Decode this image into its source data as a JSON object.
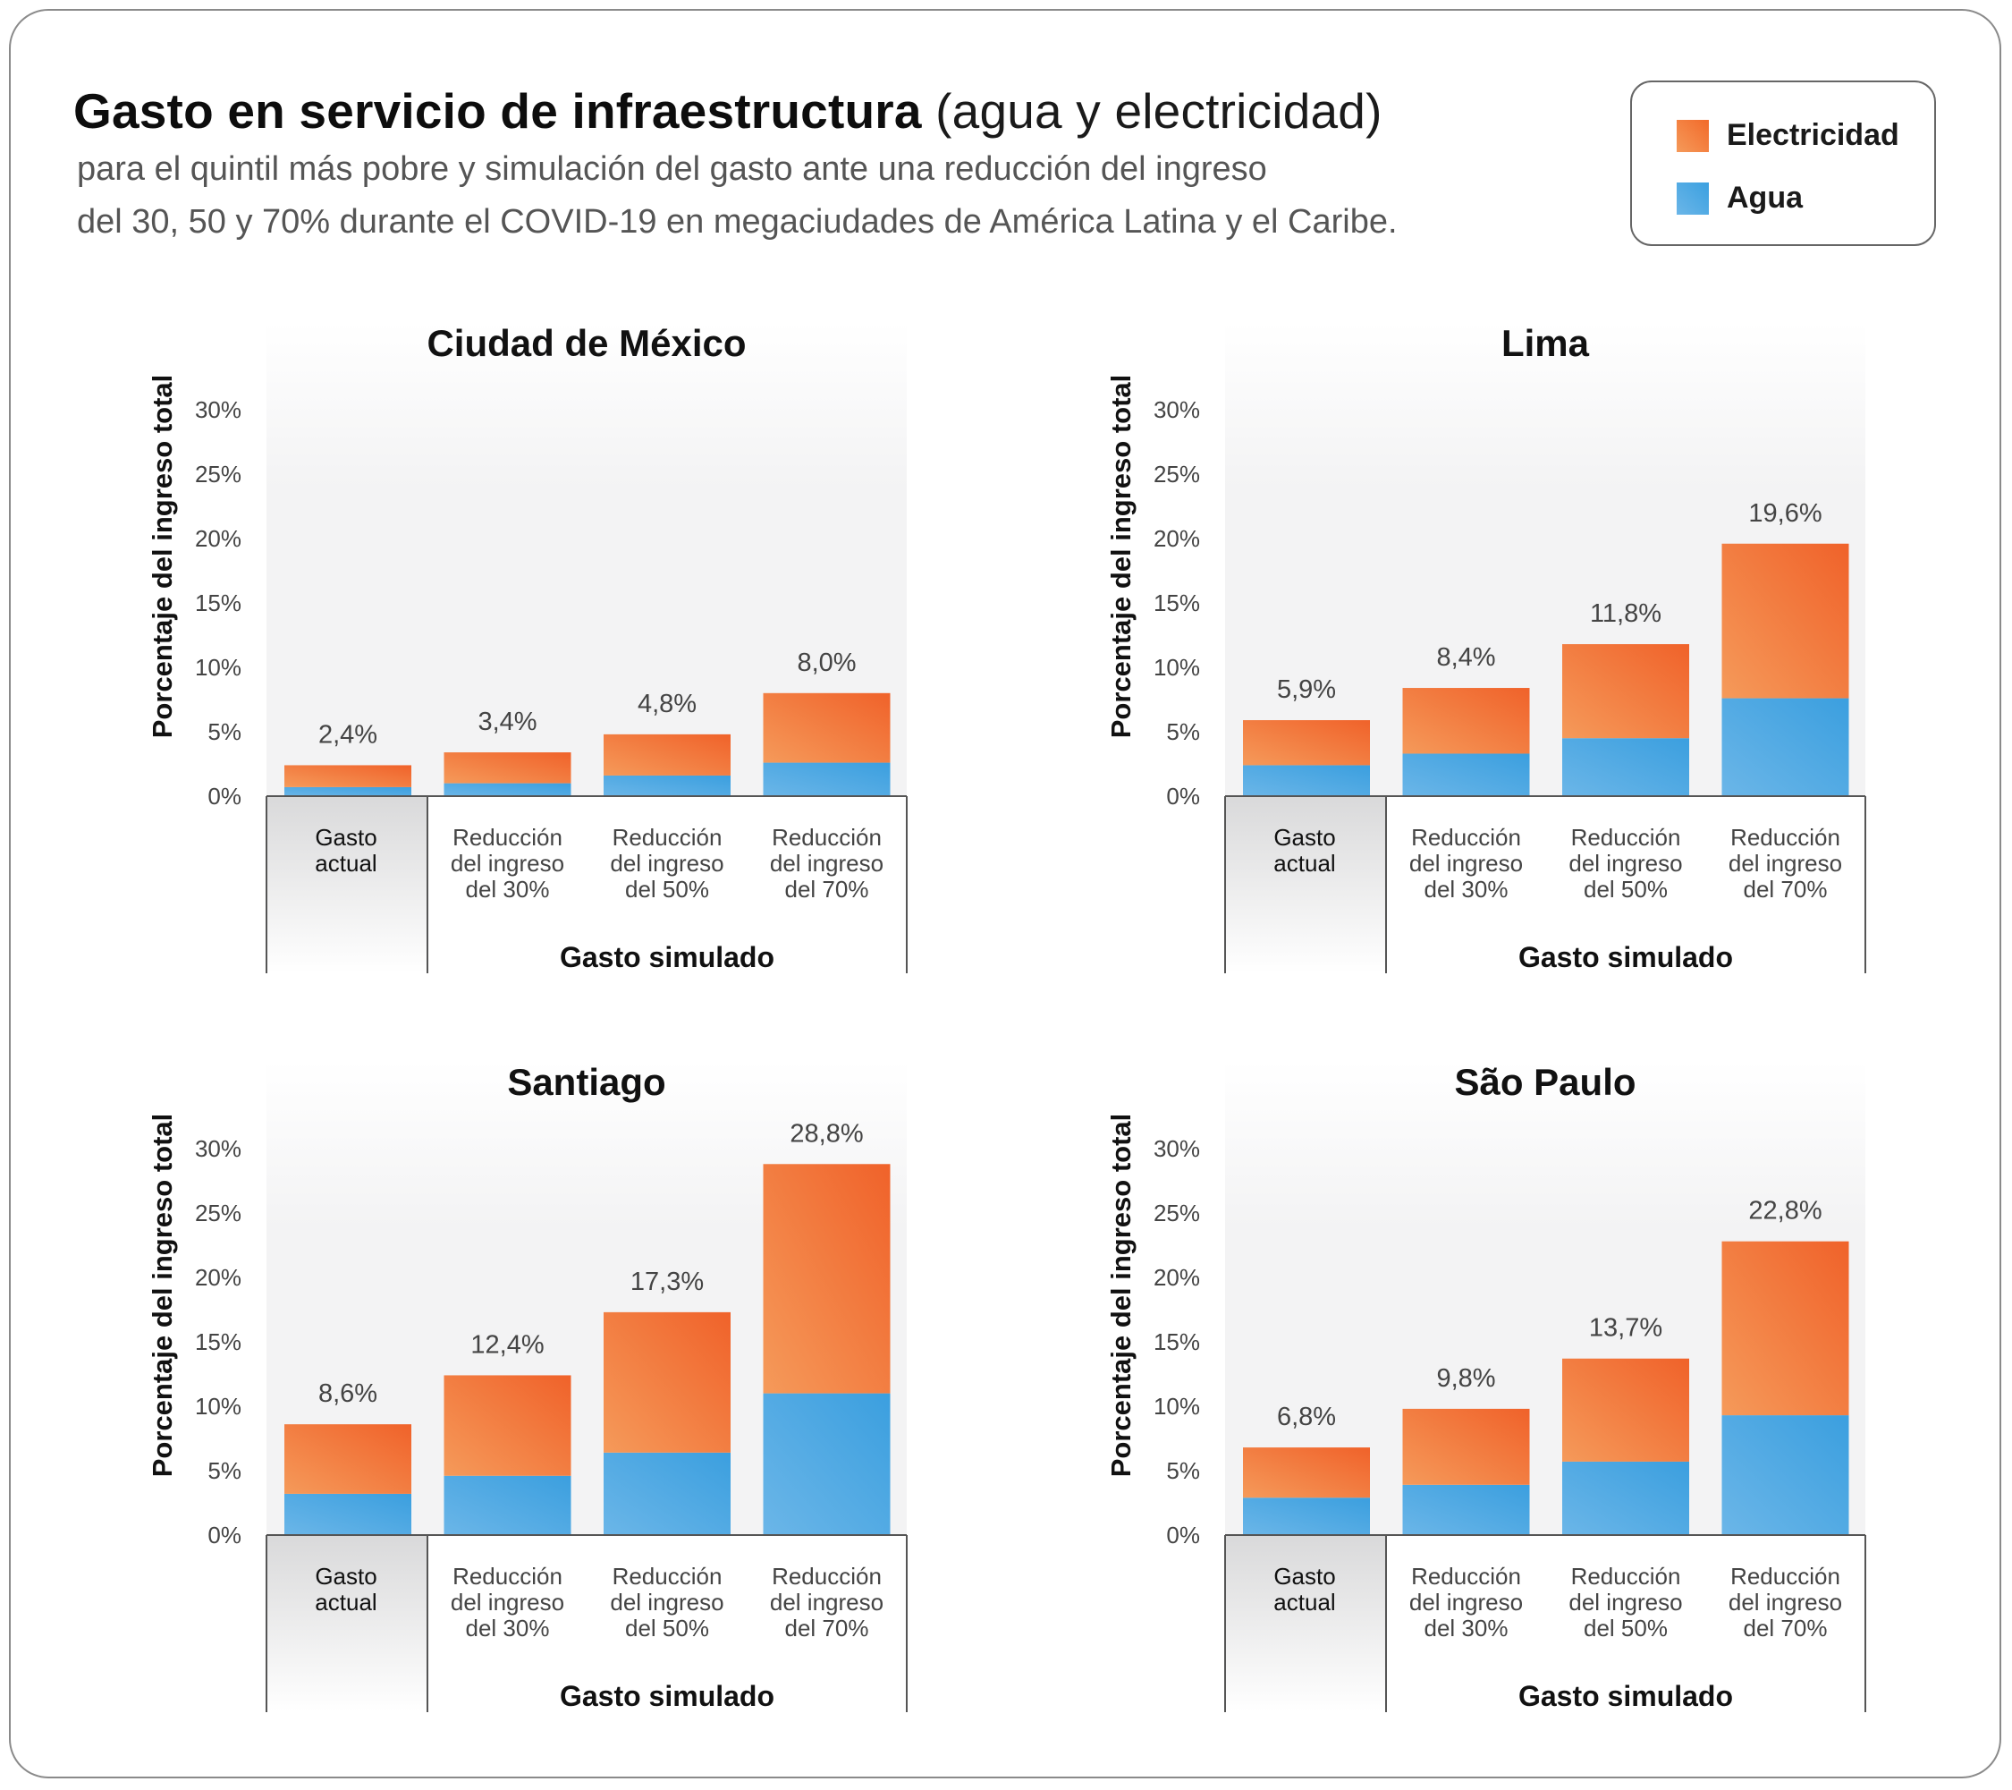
{
  "header": {
    "title_bold": "Gasto en servicio de infraestructura",
    "title_light": "(agua y electricidad)",
    "subtitle_line1": "para el quintil más pobre y simulación del gasto ante una reducción del ingreso",
    "subtitle_line2": "del 30, 50 y 70% durante el COVID-19 en megaciudades de América Latina y el Caribe."
  },
  "legend": {
    "electricidad": "Electricidad",
    "agua": "Agua"
  },
  "colors": {
    "electricidad_light": "#f59a5a",
    "electricidad_dark": "#f0622a",
    "agua_light": "#6bb6e8",
    "agua_dark": "#3b9fdf",
    "axis": "#555555",
    "panel_bg": "#f3f3f4"
  },
  "chart_data": [
    {
      "type": "bar",
      "stacked": true,
      "title": "Ciudad de México",
      "ylabel": "Porcentaje del ingreso total",
      "ylim": [
        0,
        30
      ],
      "yticks": [
        "0%",
        "5%",
        "10%",
        "15%",
        "20%",
        "25%",
        "30%"
      ],
      "categories": [
        "Gasto actual",
        "Reducción del ingreso del 30%",
        "Reducción del ingreso del 50%",
        "Reducción del ingreso del 70%"
      ],
      "group_label": "Gasto simulado",
      "series": [
        {
          "name": "Agua",
          "values": [
            0.7,
            1.0,
            1.6,
            2.6
          ]
        },
        {
          "name": "Electricidad",
          "values": [
            1.7,
            2.4,
            3.2,
            5.4
          ]
        }
      ],
      "totals": [
        2.4,
        3.4,
        4.8,
        8.0
      ],
      "total_labels": [
        "2,4%",
        "3,4%",
        "4,8%",
        "8,0%"
      ]
    },
    {
      "type": "bar",
      "stacked": true,
      "title": "Lima",
      "ylabel": "Porcentaje del ingreso total",
      "ylim": [
        0,
        30
      ],
      "yticks": [
        "0%",
        "5%",
        "10%",
        "15%",
        "20%",
        "25%",
        "30%"
      ],
      "categories": [
        "Gasto actual",
        "Reducción del ingreso del 30%",
        "Reducción del ingreso del 50%",
        "Reducción del ingreso del 70%"
      ],
      "group_label": "Gasto simulado",
      "series": [
        {
          "name": "Agua",
          "values": [
            2.4,
            3.3,
            4.5,
            7.6
          ]
        },
        {
          "name": "Electricidad",
          "values": [
            3.5,
            5.1,
            7.3,
            12.0
          ]
        }
      ],
      "totals": [
        5.9,
        8.4,
        11.8,
        19.6
      ],
      "total_labels": [
        "5,9%",
        "8,4%",
        "11,8%",
        "19,6%"
      ]
    },
    {
      "type": "bar",
      "stacked": true,
      "title": "Santiago",
      "ylabel": "Porcentaje del ingreso total",
      "ylim": [
        0,
        30
      ],
      "yticks": [
        "0%",
        "5%",
        "10%",
        "15%",
        "20%",
        "25%",
        "30%"
      ],
      "categories": [
        "Gasto actual",
        "Reducción del ingreso del 30%",
        "Reducción del ingreso del 50%",
        "Reducción del ingreso del 70%"
      ],
      "group_label": "Gasto simulado",
      "series": [
        {
          "name": "Agua",
          "values": [
            3.2,
            4.6,
            6.4,
            11.0
          ]
        },
        {
          "name": "Electricidad",
          "values": [
            5.4,
            7.8,
            10.9,
            17.8
          ]
        }
      ],
      "totals": [
        8.6,
        12.4,
        17.3,
        28.8
      ],
      "total_labels": [
        "8,6%",
        "12,4%",
        "17,3%",
        "28,8%"
      ]
    },
    {
      "type": "bar",
      "stacked": true,
      "title": "São Paulo",
      "ylabel": "Porcentaje del ingreso total",
      "ylim": [
        0,
        30
      ],
      "yticks": [
        "0%",
        "5%",
        "10%",
        "15%",
        "20%",
        "25%",
        "30%"
      ],
      "categories": [
        "Gasto actual",
        "Reducción del ingreso del 30%",
        "Reducción del ingreso del 50%",
        "Reducción del ingreso del 70%"
      ],
      "group_label": "Gasto simulado",
      "series": [
        {
          "name": "Agua",
          "values": [
            2.9,
            3.9,
            5.7,
            9.3
          ]
        },
        {
          "name": "Electricidad",
          "values": [
            3.9,
            5.9,
            8.0,
            13.5
          ]
        }
      ],
      "totals": [
        6.8,
        9.8,
        13.7,
        22.8
      ],
      "total_labels": [
        "6,8%",
        "9,8%",
        "13,7%",
        "22,8%"
      ]
    }
  ]
}
